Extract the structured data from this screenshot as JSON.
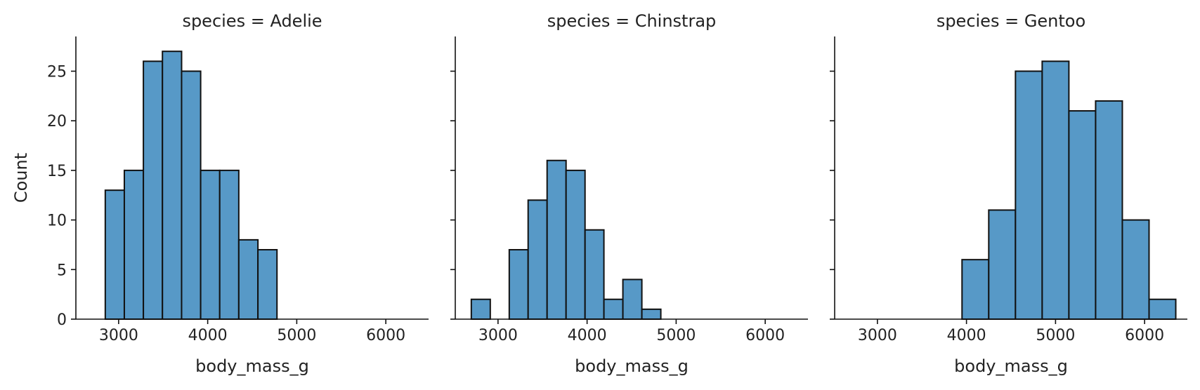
{
  "chart_data": [
    {
      "type": "bar",
      "title": "species = Adelie",
      "xlabel": "body_mass_g",
      "ylabel": "Count",
      "xlim": [
        2520,
        6480
      ],
      "ylim": [
        0,
        28.5
      ],
      "xticks": [
        "3000",
        "4000",
        "5000",
        "6000"
      ],
      "yticks": [
        "0",
        "5",
        "10",
        "15",
        "20",
        "25"
      ],
      "bar_color": "#5799c7",
      "edge_color": "#111111",
      "bins": [
        {
          "x0": 2850,
          "x1": 3064,
          "count": 13
        },
        {
          "x0": 3064,
          "x1": 3278,
          "count": 15
        },
        {
          "x0": 3278,
          "x1": 3492,
          "count": 26
        },
        {
          "x0": 3492,
          "x1": 3707,
          "count": 27
        },
        {
          "x0": 3707,
          "x1": 3921,
          "count": 25
        },
        {
          "x0": 3921,
          "x1": 4135,
          "count": 15
        },
        {
          "x0": 4135,
          "x1": 4349,
          "count": 15
        },
        {
          "x0": 4349,
          "x1": 4564,
          "count": 8
        },
        {
          "x0": 4564,
          "x1": 4778,
          "count": 7
        }
      ]
    },
    {
      "type": "bar",
      "title": "species = Chinstrap",
      "xlabel": "body_mass_g",
      "ylabel": "",
      "xlim": [
        2520,
        6480
      ],
      "ylim": [
        0,
        28.5
      ],
      "xticks": [
        "3000",
        "4000",
        "5000",
        "6000"
      ],
      "yticks": [],
      "bar_color": "#5799c7",
      "edge_color": "#111111",
      "bins": [
        {
          "x0": 2700,
          "x1": 2913,
          "count": 2
        },
        {
          "x0": 2913,
          "x1": 3126,
          "count": 0
        },
        {
          "x0": 3126,
          "x1": 3338,
          "count": 7
        },
        {
          "x0": 3338,
          "x1": 3551,
          "count": 12
        },
        {
          "x0": 3551,
          "x1": 3764,
          "count": 16
        },
        {
          "x0": 3764,
          "x1": 3977,
          "count": 15
        },
        {
          "x0": 3977,
          "x1": 4189,
          "count": 9
        },
        {
          "x0": 4189,
          "x1": 4402,
          "count": 2
        },
        {
          "x0": 4402,
          "x1": 4615,
          "count": 4
        },
        {
          "x0": 4615,
          "x1": 4828,
          "count": 1
        }
      ]
    },
    {
      "type": "bar",
      "title": "species = Gentoo",
      "xlabel": "body_mass_g",
      "ylabel": "",
      "xlim": [
        2520,
        6480
      ],
      "ylim": [
        0,
        28.5
      ],
      "xticks": [
        "3000",
        "4000",
        "5000",
        "6000"
      ],
      "yticks": [],
      "bar_color": "#5799c7",
      "edge_color": "#111111",
      "bins": [
        {
          "x0": 3950,
          "x1": 4250,
          "count": 6
        },
        {
          "x0": 4250,
          "x1": 4550,
          "count": 11
        },
        {
          "x0": 4550,
          "x1": 4850,
          "count": 25
        },
        {
          "x0": 4850,
          "x1": 5150,
          "count": 26
        },
        {
          "x0": 5150,
          "x1": 5450,
          "count": 21
        },
        {
          "x0": 5450,
          "x1": 5750,
          "count": 22
        },
        {
          "x0": 5750,
          "x1": 6050,
          "count": 10
        },
        {
          "x0": 6050,
          "x1": 6350,
          "count": 2
        }
      ]
    }
  ]
}
